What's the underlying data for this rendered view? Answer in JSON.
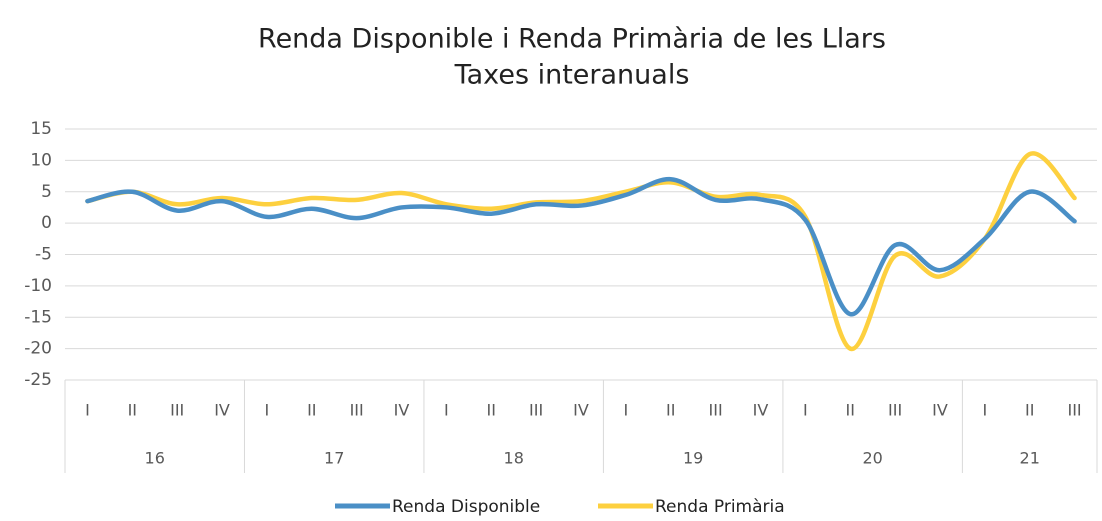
{
  "chart_data": {
    "type": "line",
    "title": "Renda Disponible i Renda Primària de les Llars",
    "subtitle": "Taxes interanuals",
    "groups": [
      {
        "label": "16",
        "quarters": [
          "I",
          "II",
          "III",
          "IV"
        ]
      },
      {
        "label": "17",
        "quarters": [
          "I",
          "II",
          "III",
          "IV"
        ]
      },
      {
        "label": "18",
        "quarters": [
          "I",
          "II",
          "III",
          "IV"
        ]
      },
      {
        "label": "19",
        "quarters": [
          "I",
          "II",
          "III",
          "IV"
        ]
      },
      {
        "label": "20",
        "quarters": [
          "I",
          "II",
          "III",
          "IV"
        ]
      },
      {
        "label": "21",
        "quarters": [
          "I",
          "II",
          "III"
        ]
      }
    ],
    "series": [
      {
        "name": "Renda Disponible",
        "color": "#4a8fc6",
        "values": [
          3.5,
          5,
          2,
          3.5,
          1,
          2.3,
          0.8,
          2.5,
          2.5,
          1.5,
          3,
          2.8,
          4.5,
          7,
          3.7,
          3.8,
          0.5,
          -14.5,
          -3.5,
          -7.5,
          -2.5,
          5,
          0.3
        ]
      },
      {
        "name": "Renda Primària",
        "color": "#fdd03f",
        "values": [
          3.5,
          5,
          3,
          4,
          3,
          4,
          3.7,
          4.8,
          3,
          2.3,
          3.3,
          3.5,
          5,
          6.5,
          4.2,
          4.5,
          1,
          -20,
          -5.2,
          -8.5,
          -2.5,
          11,
          4
        ]
      }
    ],
    "ylim": [
      -25,
      15
    ],
    "yticks": [
      15,
      10,
      5,
      0,
      -5,
      -10,
      -15,
      -20,
      -25
    ],
    "grid": true,
    "legend": "bottom"
  }
}
